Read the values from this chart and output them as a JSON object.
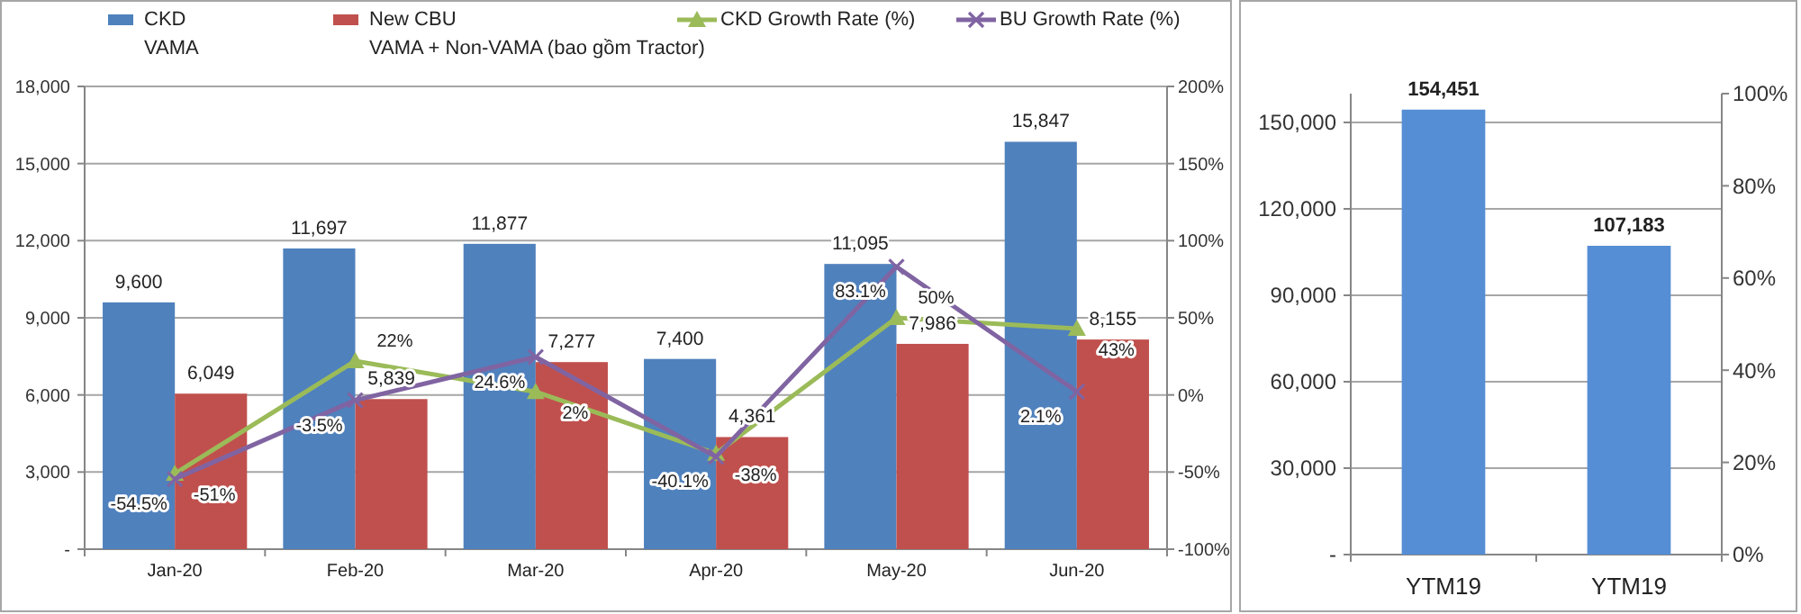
{
  "chart_data": [
    {
      "type": "bar",
      "categories": [
        "Jan-20",
        "Feb-20",
        "Mar-20",
        "Apr-20",
        "May-20",
        "Jun-20"
      ],
      "series": [
        {
          "name": "CKD",
          "color": "#4f81bd",
          "values": [
            9600,
            11697,
            11877,
            7400,
            11095,
            15847
          ],
          "value_labels": [
            "9,600",
            "11,697",
            "11,877",
            "7,400",
            "11,095",
            "15,847"
          ]
        },
        {
          "name": "New CBU",
          "color": "#c0504d",
          "values": [
            6049,
            5839,
            7277,
            4361,
            7986,
            8155
          ],
          "value_labels": [
            "6,049",
            "5,839",
            "7,277",
            "4,361",
            "7,986",
            "8,155"
          ]
        },
        {
          "name": "CKD Growth Rate (%)",
          "type": "line",
          "axis": "y2",
          "marker": "triangle",
          "color": "#9bbb59",
          "values": [
            -51,
            22,
            2,
            -38,
            50,
            43
          ],
          "value_labels": [
            "-51%",
            "22%",
            "2%",
            "-38%",
            "50%",
            "43%"
          ]
        },
        {
          "name": "BU Growth Rate (%)",
          "type": "line",
          "axis": "y2",
          "marker": "cross",
          "color": "#8064a2",
          "values": [
            -54.5,
            -3.5,
            24.6,
            -40.1,
            83.1,
            2.1
          ],
          "value_labels": [
            "-54.5%",
            "-3.5%",
            "24.6%",
            "-40.1%",
            "83.1%",
            "2.1%"
          ]
        }
      ],
      "ylim": [
        0,
        18000
      ],
      "yticks": [
        {
          "value": 0,
          "label": "-"
        },
        {
          "value": 3000,
          "label": "3,000"
        },
        {
          "value": 6000,
          "label": "6,000"
        },
        {
          "value": 9000,
          "label": "9,000"
        },
        {
          "value": 12000,
          "label": "12,000"
        },
        {
          "value": 15000,
          "label": "15,000"
        },
        {
          "value": 18000,
          "label": "18,000"
        }
      ],
      "y2lim": [
        -100,
        200
      ],
      "y2ticks": [
        {
          "value": -100,
          "label": "-100%"
        },
        {
          "value": -50,
          "label": "-50%"
        },
        {
          "value": 0,
          "label": "0%"
        },
        {
          "value": 50,
          "label": "50%"
        },
        {
          "value": 100,
          "label": "100%"
        },
        {
          "value": 150,
          "label": "150%"
        },
        {
          "value": 200,
          "label": "200%"
        }
      ],
      "grid": "y",
      "legend": "top",
      "annotations": [
        "VAMA",
        "VAMA + Non-VAMA (bao gồm Tractor)"
      ]
    },
    {
      "type": "bar",
      "categories": [
        "YTM19",
        "YTM19"
      ],
      "values": [
        154451,
        107183
      ],
      "color": "#558ed5",
      "value_labels": [
        "154,451",
        "107,183"
      ],
      "ylim": [
        0,
        160000
      ],
      "yticks": [
        {
          "value": 0,
          "label": "-"
        },
        {
          "value": 30000,
          "label": "30,000"
        },
        {
          "value": 60000,
          "label": "60,000"
        },
        {
          "value": 90000,
          "label": "90,000"
        },
        {
          "value": 120000,
          "label": "120,000"
        },
        {
          "value": 150000,
          "label": "150,000"
        }
      ],
      "y2lim": [
        0,
        100
      ],
      "y2ticks": [
        {
          "value": 0,
          "label": "0%"
        },
        {
          "value": 20,
          "label": "20%"
        },
        {
          "value": 40,
          "label": "40%"
        },
        {
          "value": 60,
          "label": "60%"
        },
        {
          "value": 80,
          "label": "80%"
        },
        {
          "value": 100,
          "label": "100%"
        }
      ],
      "grid": "y"
    }
  ]
}
